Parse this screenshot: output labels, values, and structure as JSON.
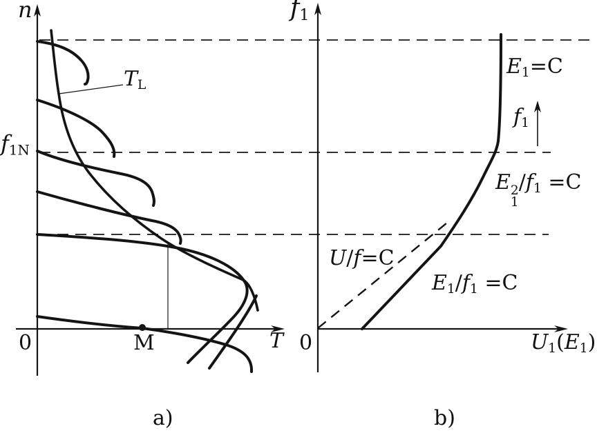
{
  "figure": {
    "background": "#ffffff",
    "ink": "#141414",
    "panel_a": {
      "caption": "a)",
      "y_axis_label": [
        {
          "i": "n"
        }
      ],
      "x_axis_label": [
        {
          "i": "T"
        }
      ],
      "origin_label": "0",
      "rated_frequency_mark": [
        {
          "i": "f"
        },
        {
          "sub": "1N"
        }
      ],
      "load_torque_label": [
        {
          "i": "T"
        },
        {
          "sub": "L"
        }
      ],
      "operating_point_label": "M",
      "curve_count": 6
    },
    "panel_b": {
      "caption": "b)",
      "y_axis_label": [
        {
          "i": "f"
        },
        {
          "sub": "1"
        }
      ],
      "x_axis_label": [
        {
          "i": "U"
        },
        {
          "sub": "1"
        },
        {
          "t": "("
        },
        {
          "i": "E"
        },
        {
          "sub": "1"
        },
        {
          "t": ")"
        }
      ],
      "origin_label": "0",
      "region_label_e1_const": [
        {
          "i": "E"
        },
        {
          "sub": "1"
        },
        {
          "t": "=C"
        }
      ],
      "region_label_f1_rising": [
        {
          "i": "f"
        },
        {
          "sub": "1"
        }
      ],
      "region_label_e1sq_over_f1": [
        {
          "i": "E"
        },
        {
          "stack": [
            "2",
            "1"
          ]
        },
        {
          "t": "/"
        },
        {
          "i": "f"
        },
        {
          "sub": "1"
        },
        {
          "t": " =C"
        }
      ],
      "region_label_u_over_f": [
        {
          "i": "U"
        },
        {
          "t": "/"
        },
        {
          "i": "f"
        },
        {
          "t": "=C"
        }
      ],
      "region_label_e1_over_f1": [
        {
          "i": "E"
        },
        {
          "sub": "1"
        },
        {
          "t": "/"
        },
        {
          "i": "f"
        },
        {
          "sub": "1"
        },
        {
          "t": " =C"
        }
      ]
    }
  }
}
